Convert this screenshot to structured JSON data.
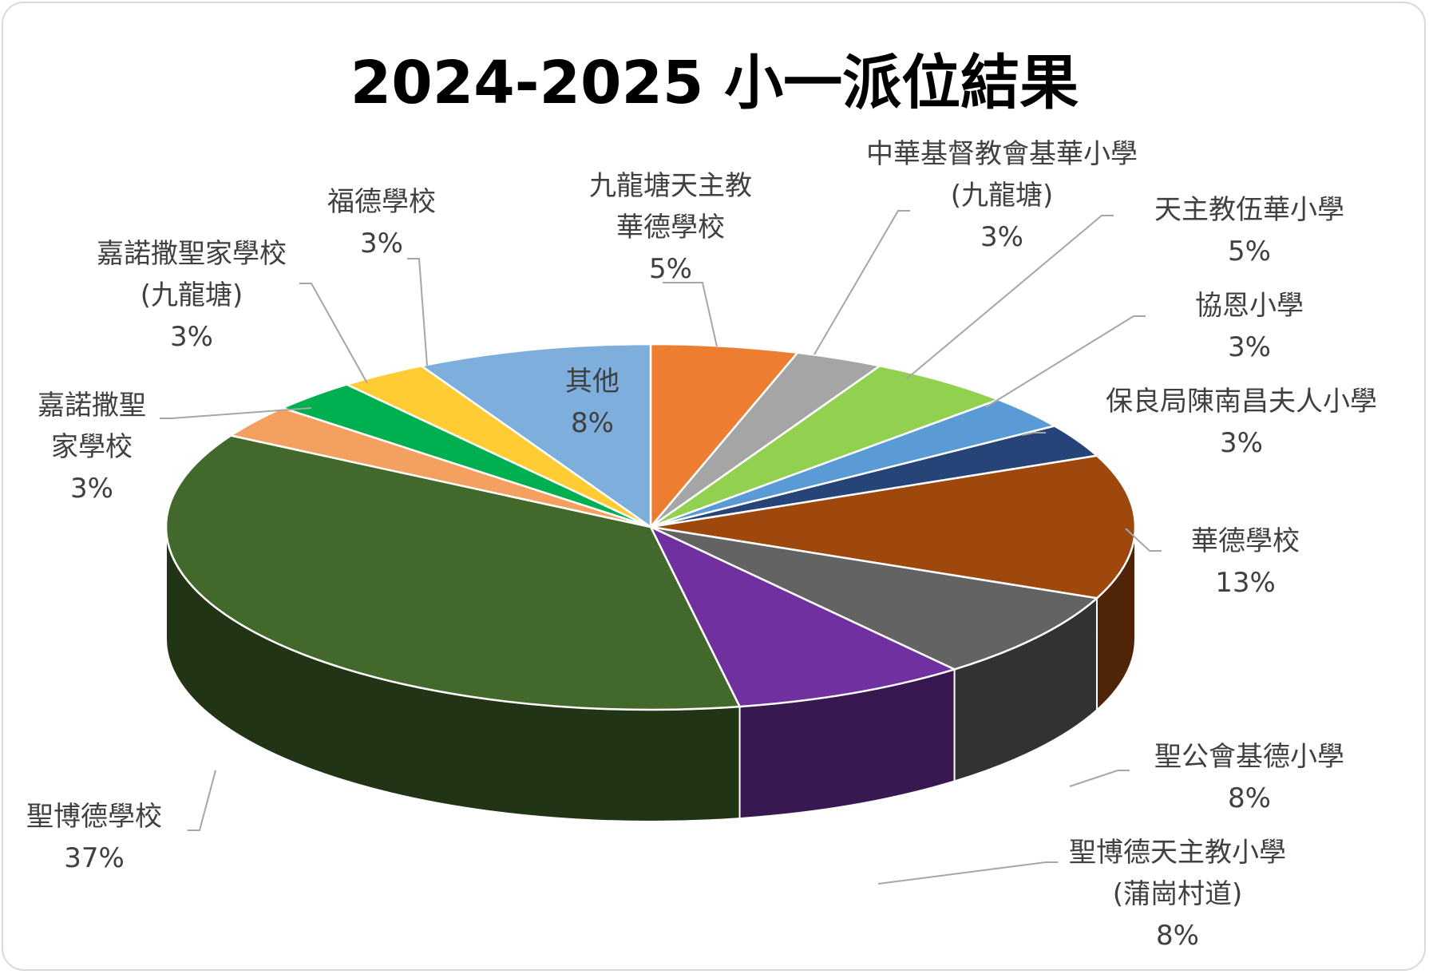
{
  "chart_data": {
    "type": "pie",
    "title": "2024-2025 小一派位結果",
    "slices": [
      {
        "label": "九龍塘天主教\n華德學校",
        "value": 5,
        "display": "5%",
        "color": "#ED7D31"
      },
      {
        "label": "中華基督教會基華小學\n(九龍塘)",
        "value": 3,
        "display": "3%",
        "color": "#A5A5A5"
      },
      {
        "label": "天主教伍華小學",
        "value": 5,
        "display": "5%",
        "color": "#92D050"
      },
      {
        "label": "協恩小學",
        "value": 3,
        "display": "3%",
        "color": "#5B9BD5"
      },
      {
        "label": "保良局陳南昌夫人小學",
        "value": 3,
        "display": "3%",
        "color": "#264478"
      },
      {
        "label": "華德學校",
        "value": 13,
        "display": "13%",
        "color": "#9E480E"
      },
      {
        "label": "聖公會基德小學",
        "value": 8,
        "display": "8%",
        "color": "#636363"
      },
      {
        "label": "聖博德天主教小學\n(蒲崗村道)",
        "value": 8,
        "display": "8%",
        "color": "#7030A0"
      },
      {
        "label": "聖博德學校",
        "value": 37,
        "display": "37%",
        "color": "#43682B"
      },
      {
        "label": "嘉諾撒聖\n家學校",
        "value": 3,
        "display": "3%",
        "color": "#F4A060"
      },
      {
        "label": "嘉諾撒聖家學校\n(九龍塘)",
        "value": 3,
        "display": "3%",
        "color": "#00B050"
      },
      {
        "label": "福德學校",
        "value": 3,
        "display": "3%",
        "color": "#FFCC33"
      },
      {
        "label": "其他",
        "value": 8,
        "display": "8%",
        "color": "#7EAEDC"
      }
    ]
  }
}
